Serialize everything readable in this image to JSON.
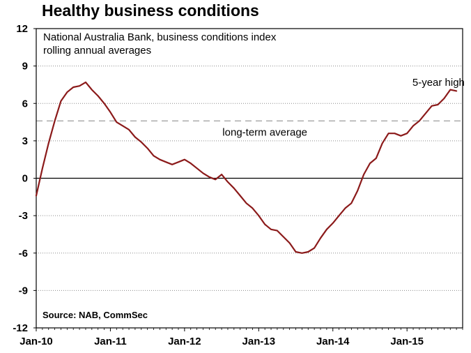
{
  "chart_data": {
    "type": "line",
    "title": "Healthy business conditions",
    "subtitle_lines": [
      "National Australia Bank, business conditions index",
      "rolling annual averages"
    ],
    "source": "Source: NAB, CommSec",
    "xlabel": "",
    "ylabel": "",
    "x_tick_labels": [
      "Jan-10",
      "Jan-11",
      "Jan-12",
      "Jan-13",
      "Jan-14",
      "Jan-15"
    ],
    "y_ticks": [
      12,
      9,
      6,
      3,
      0,
      -3,
      -6,
      -9,
      -12
    ],
    "ylim": [
      -12,
      12
    ],
    "xlim": [
      "2010-01",
      "2015-10"
    ],
    "grid": true,
    "series": [
      {
        "color": "#8B1A1A",
        "points": [
          [
            "2010-01",
            -1.4
          ],
          [
            "2010-02",
            0.8
          ],
          [
            "2010-03",
            2.8
          ],
          [
            "2010-04",
            4.6
          ],
          [
            "2010-05",
            6.2
          ],
          [
            "2010-06",
            6.9
          ],
          [
            "2010-07",
            7.3
          ],
          [
            "2010-08",
            7.4
          ],
          [
            "2010-09",
            7.7
          ],
          [
            "2010-10",
            7.1
          ],
          [
            "2010-11",
            6.6
          ],
          [
            "2010-12",
            6.0
          ],
          [
            "2011-01",
            5.3
          ],
          [
            "2011-02",
            4.5
          ],
          [
            "2011-03",
            4.2
          ],
          [
            "2011-04",
            3.9
          ],
          [
            "2011-05",
            3.3
          ],
          [
            "2011-06",
            2.9
          ],
          [
            "2011-07",
            2.4
          ],
          [
            "2011-08",
            1.8
          ],
          [
            "2011-09",
            1.5
          ],
          [
            "2011-10",
            1.3
          ],
          [
            "2011-11",
            1.1
          ],
          [
            "2011-12",
            1.3
          ],
          [
            "2012-01",
            1.5
          ],
          [
            "2012-02",
            1.2
          ],
          [
            "2012-03",
            0.8
          ],
          [
            "2012-04",
            0.4
          ],
          [
            "2012-05",
            0.1
          ],
          [
            "2012-06",
            -0.1
          ],
          [
            "2012-07",
            0.3
          ],
          [
            "2012-08",
            -0.3
          ],
          [
            "2012-09",
            -0.8
          ],
          [
            "2012-10",
            -1.4
          ],
          [
            "2012-11",
            -2.0
          ],
          [
            "2012-12",
            -2.4
          ],
          [
            "2013-01",
            -3.0
          ],
          [
            "2013-02",
            -3.7
          ],
          [
            "2013-03",
            -4.1
          ],
          [
            "2013-04",
            -4.2
          ],
          [
            "2013-05",
            -4.7
          ],
          [
            "2013-06",
            -5.2
          ],
          [
            "2013-07",
            -5.9
          ],
          [
            "2013-08",
            -6.0
          ],
          [
            "2013-09",
            -5.9
          ],
          [
            "2013-10",
            -5.6
          ],
          [
            "2013-11",
            -4.8
          ],
          [
            "2013-12",
            -4.1
          ],
          [
            "2014-01",
            -3.6
          ],
          [
            "2014-02",
            -3.0
          ],
          [
            "2014-03",
            -2.4
          ],
          [
            "2014-04",
            -2.0
          ],
          [
            "2014-05",
            -1.0
          ],
          [
            "2014-06",
            0.3
          ],
          [
            "2014-07",
            1.2
          ],
          [
            "2014-08",
            1.6
          ],
          [
            "2014-09",
            2.8
          ],
          [
            "2014-10",
            3.6
          ],
          [
            "2014-11",
            3.6
          ],
          [
            "2014-12",
            3.4
          ],
          [
            "2015-01",
            3.6
          ],
          [
            "2015-02",
            4.2
          ],
          [
            "2015-03",
            4.6
          ],
          [
            "2015-04",
            5.2
          ],
          [
            "2015-05",
            5.8
          ],
          [
            "2015-06",
            5.9
          ],
          [
            "2015-07",
            6.4
          ],
          [
            "2015-08",
            7.1
          ],
          [
            "2015-09",
            7.0
          ]
        ]
      }
    ],
    "reference_line": {
      "label": "long-term average",
      "value": 4.6,
      "style": "dashed",
      "color": "#b0b0b0"
    },
    "annotations": [
      {
        "text": "5-year high",
        "x": "2015-07",
        "y": 7.7
      }
    ]
  }
}
